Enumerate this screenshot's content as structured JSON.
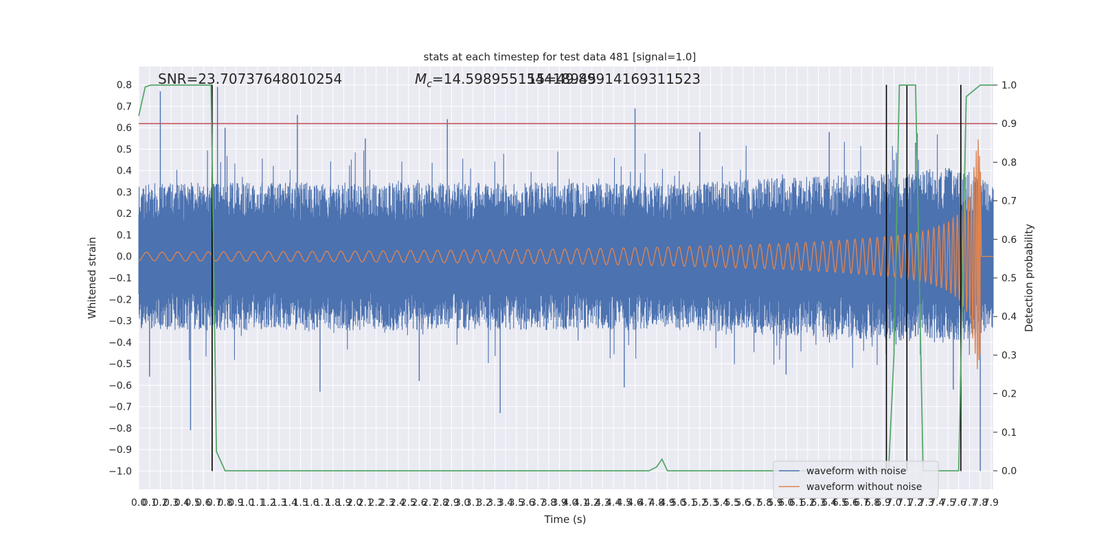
{
  "chart_data": {
    "type": "line",
    "title": "stats at each timestep for test data 481 [signal=1.0]",
    "annotations": {
      "snr": "SNR=23.70737648010254",
      "mc_symbol": "M",
      "mc_subscript": "c",
      "mc_value": "=14.598955154418945",
      "overlap_text": "15=49.89914169311523"
    },
    "xlabel": "Time (s)",
    "ylabel_left": "Whitened strain",
    "ylabel_right": "Detection probability",
    "xlim": [
      0,
      7.92
    ],
    "ylim_left": [
      -1.085,
      0.885
    ],
    "ylim_right": [
      -0.048,
      1.048
    ],
    "x_ticks": [
      "0.0",
      "0.1",
      "0.2",
      "0.3",
      "0.4",
      "0.5",
      "0.6",
      "0.7",
      "0.8",
      "0.9",
      "1.0",
      "1.1",
      "1.2",
      "1.3",
      "1.4",
      "1.5",
      "1.6",
      "1.7",
      "1.8",
      "1.9",
      "2.0",
      "2.1",
      "2.2",
      "2.3",
      "2.4",
      "2.5",
      "2.6",
      "2.7",
      "2.8",
      "2.9",
      "3.0",
      "3.1",
      "3.2",
      "3.3",
      "3.4",
      "3.5",
      "3.6",
      "3.7",
      "3.8",
      "3.9",
      "4.0",
      "4.1",
      "4.2",
      "4.3",
      "4.4",
      "4.5",
      "4.6",
      "4.7",
      "4.8",
      "4.9",
      "5.0",
      "5.1",
      "5.2",
      "5.3",
      "5.4",
      "5.5",
      "5.6",
      "5.7",
      "5.8",
      "5.9",
      "6.0",
      "6.1",
      "6.2",
      "6.3",
      "6.4",
      "6.5",
      "6.6",
      "6.7",
      "6.8",
      "6.9",
      "7.0",
      "7.1",
      "7.2",
      "7.3",
      "7.4",
      "7.5",
      "7.6",
      "7.7",
      "7.8",
      "7.9"
    ],
    "y_ticks_left": [
      "0.8",
      "0.7",
      "0.6",
      "0.5",
      "0.4",
      "0.3",
      "0.2",
      "0.1",
      "0.0",
      "−0.1",
      "−0.2",
      "−0.3",
      "−0.4",
      "−0.5",
      "−0.6",
      "−0.7",
      "−0.8",
      "−0.9",
      "−1.0"
    ],
    "y_tick_values_left": [
      0.8,
      0.7,
      0.6,
      0.5,
      0.4,
      0.3,
      0.2,
      0.1,
      0.0,
      -0.1,
      -0.2,
      -0.3,
      -0.4,
      -0.5,
      -0.6,
      -0.7,
      -0.8,
      -0.9,
      -1.0
    ],
    "y_ticks_right": [
      "1.0",
      "0.9",
      "0.8",
      "0.7",
      "0.6",
      "0.5",
      "0.4",
      "0.3",
      "0.2",
      "0.1",
      "0.0"
    ],
    "y_tick_values_right": [
      1.0,
      0.9,
      0.8,
      0.7,
      0.6,
      0.5,
      0.4,
      0.3,
      0.2,
      0.1,
      0.0
    ],
    "series": [
      {
        "name": "waveform with noise",
        "color": "#4c72b0",
        "description": "noisy whitened strain, amplitude about ±0.4 with spikes",
        "envelope": {
          "x": [
            0,
            1,
            2,
            3,
            4,
            5,
            6,
            7,
            7.5,
            7.92
          ],
          "upper": [
            0.3,
            0.3,
            0.3,
            0.3,
            0.3,
            0.3,
            0.32,
            0.34,
            0.36,
            0.3
          ],
          "lower": [
            -0.3,
            -0.3,
            -0.3,
            -0.3,
            -0.3,
            -0.3,
            -0.32,
            -0.34,
            -0.36,
            -0.3
          ]
        },
        "spikes": [
          {
            "x": 0.2,
            "y": 0.77
          },
          {
            "x": 0.73,
            "y": 0.79
          },
          {
            "x": 1.47,
            "y": 0.66
          },
          {
            "x": 2.86,
            "y": 0.64
          },
          {
            "x": 4.6,
            "y": 0.69
          },
          {
            "x": 0.48,
            "y": -0.81
          },
          {
            "x": 3.35,
            "y": -0.73
          },
          {
            "x": 1.68,
            "y": -0.63
          },
          {
            "x": 4.5,
            "y": -0.61
          },
          {
            "x": 7.8,
            "y": -1.0
          },
          {
            "x": 0.1,
            "y": -0.56
          },
          {
            "x": 0.8,
            "y": 0.6
          },
          {
            "x": 2.1,
            "y": 0.55
          },
          {
            "x": 5.2,
            "y": 0.58
          },
          {
            "x": 6.4,
            "y": 0.58
          },
          {
            "x": 7.2,
            "y": 0.53
          },
          {
            "x": 6.0,
            "y": -0.55
          },
          {
            "x": 2.6,
            "y": -0.58
          },
          {
            "x": 7.0,
            "y": 0.45
          },
          {
            "x": 7.55,
            "y": -0.62
          }
        ]
      },
      {
        "name": "waveform without noise",
        "color": "#dd8452",
        "description": "chirp signal growing in amplitude and frequency, merger near t=7.8 s",
        "amplitude_points": {
          "x": [
            0,
            2,
            4,
            5,
            6,
            6.5,
            7,
            7.3,
            7.5,
            7.6,
            7.7,
            7.78,
            7.8,
            7.81,
            7.92
          ],
          "amp": [
            0.02,
            0.025,
            0.035,
            0.045,
            0.06,
            0.075,
            0.095,
            0.12,
            0.16,
            0.2,
            0.28,
            0.55,
            0.45,
            0.0,
            0.0
          ]
        },
        "merger_time": 7.8
      },
      {
        "name": "",
        "color": "#55a868",
        "axis": "right",
        "x": [
          0,
          0.06,
          0.11,
          0.4,
          0.5,
          0.55,
          0.6,
          0.67,
          0.72,
          0.8,
          1.0,
          2.0,
          3.0,
          4.0,
          4.73,
          4.8,
          4.85,
          4.9,
          4.95,
          5.0,
          6.0,
          6.9,
          6.95,
          7.0,
          7.05,
          7.1,
          7.2,
          7.27,
          7.45,
          7.6,
          7.67,
          7.8,
          7.92
        ],
        "y": [
          0.92,
          0.995,
          1.0,
          1.0,
          1.0,
          1.0,
          1.0,
          1.0,
          0.05,
          0.0,
          0.0,
          0.0,
          0.0,
          0.0,
          0.0,
          0.01,
          0.03,
          0.0,
          0.0,
          0.0,
          0.0,
          0.0,
          0.0,
          0.3,
          1.0,
          1.0,
          1.0,
          0.0,
          0.0,
          0.0,
          0.97,
          1.0,
          1.0
        ]
      }
    ],
    "threshold": {
      "value": 0.9,
      "axis": "right",
      "color": "#c44e52"
    },
    "vlines": {
      "x": [
        0.68,
        6.93,
        7.12,
        7.62
      ],
      "y_from": -1.0,
      "y_to": 0.8,
      "color": "#000000"
    },
    "legend": {
      "position": "lower right",
      "entries": [
        "waveform with noise",
        "waveform without noise"
      ]
    },
    "grid": true,
    "background": "#eaeaf2"
  }
}
